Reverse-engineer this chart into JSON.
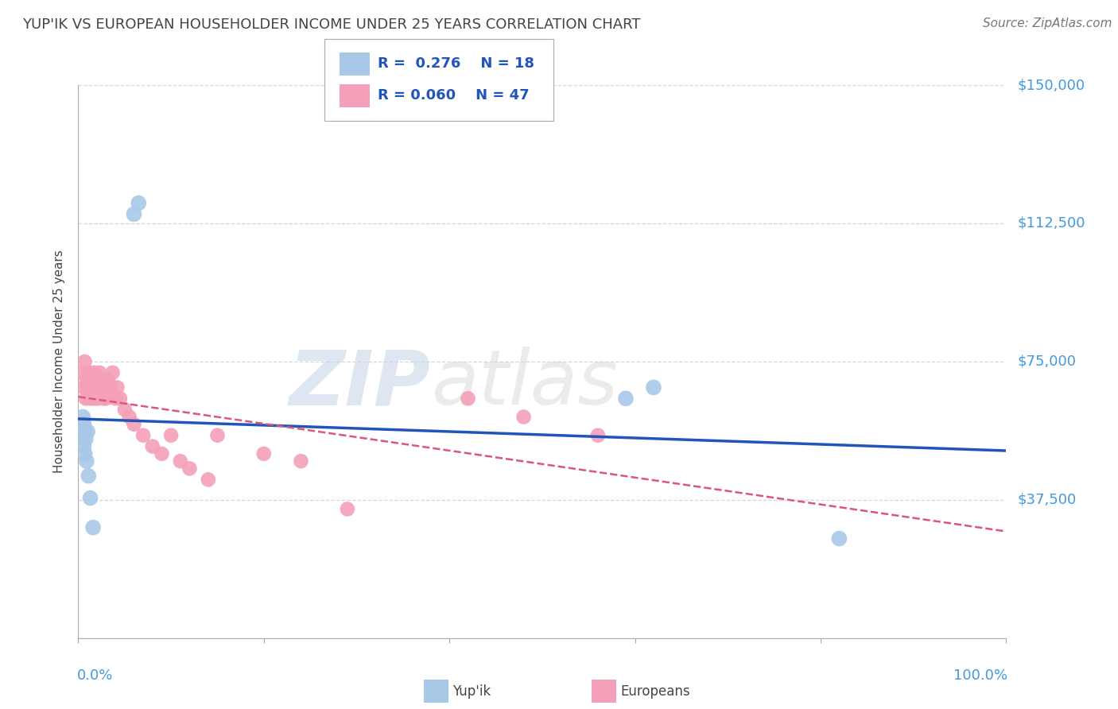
{
  "title": "YUP'IK VS EUROPEAN HOUSEHOLDER INCOME UNDER 25 YEARS CORRELATION CHART",
  "source": "Source: ZipAtlas.com",
  "ylabel": "Householder Income Under 25 years",
  "xlim": [
    0,
    1.0
  ],
  "ylim": [
    0,
    150000
  ],
  "yticks": [
    0,
    37500,
    75000,
    112500,
    150000
  ],
  "ytick_labels": [
    "",
    "$37,500",
    "$75,000",
    "$112,500",
    "$150,000"
  ],
  "watermark_part1": "ZIP",
  "watermark_part2": "atlas",
  "legend_R_yupik": "0.276",
  "legend_N_yupik": "18",
  "legend_R_european": "0.060",
  "legend_N_european": "47",
  "yupik_color": "#a8c8e8",
  "european_color": "#f4a0b8",
  "yupik_line_color": "#2255bb",
  "european_line_color": "#dd5577",
  "background_color": "#ffffff",
  "grid_color": "#cccccc",
  "axis_label_color": "#4499dd",
  "text_color": "#444444",
  "yupik_x": [
    0.004,
    0.005,
    0.005,
    0.006,
    0.006,
    0.007,
    0.007,
    0.008,
    0.009,
    0.01,
    0.011,
    0.013,
    0.016,
    0.06,
    0.065,
    0.59,
    0.62,
    0.82
  ],
  "yupik_y": [
    56000,
    60000,
    55000,
    58000,
    52000,
    57000,
    50000,
    54000,
    48000,
    56000,
    44000,
    38000,
    30000,
    115000,
    118000,
    65000,
    68000,
    27000
  ],
  "european_x": [
    0.004,
    0.005,
    0.006,
    0.007,
    0.008,
    0.009,
    0.01,
    0.011,
    0.012,
    0.013,
    0.014,
    0.015,
    0.016,
    0.017,
    0.018,
    0.019,
    0.02,
    0.021,
    0.022,
    0.023,
    0.025,
    0.027,
    0.028,
    0.03,
    0.032,
    0.035,
    0.037,
    0.04,
    0.042,
    0.045,
    0.05,
    0.055,
    0.06,
    0.07,
    0.08,
    0.09,
    0.1,
    0.11,
    0.12,
    0.14,
    0.15,
    0.2,
    0.24,
    0.29,
    0.42,
    0.48,
    0.56
  ],
  "european_y": [
    58000,
    72000,
    68000,
    75000,
    65000,
    70000,
    68000,
    72000,
    65000,
    68000,
    70000,
    65000,
    68000,
    72000,
    68000,
    65000,
    70000,
    65000,
    68000,
    72000,
    70000,
    65000,
    68000,
    65000,
    70000,
    68000,
    72000,
    65000,
    68000,
    65000,
    62000,
    60000,
    58000,
    55000,
    52000,
    50000,
    55000,
    48000,
    46000,
    43000,
    55000,
    50000,
    48000,
    35000,
    65000,
    60000,
    55000
  ]
}
